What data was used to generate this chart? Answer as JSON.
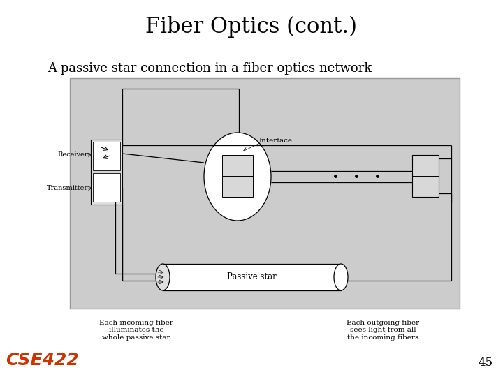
{
  "title": "Fiber Optics (cont.)",
  "subtitle": "A passive star connection in a fiber optics network",
  "page_number": "45",
  "cse_label": "CSE422",
  "bg_color": "#ffffff",
  "diagram_bg": "#cccccc",
  "title_fontsize": 22,
  "subtitle_fontsize": 13,
  "page_number_fontsize": 12,
  "cse_color": "#cc3300"
}
